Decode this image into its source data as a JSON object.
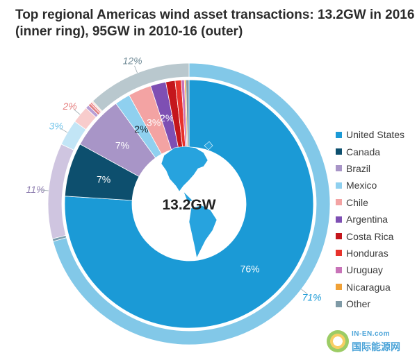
{
  "title_line1": "Top regional Americas wind asset transactions: 13.2GW in 2016",
  "title_line2": "(inner ring), 95GW in 2010-16 (outer)",
  "center_label": "13.2GW",
  "watermark": {
    "line1": "IN-EN.com",
    "line2": "国际能源网"
  },
  "chart_data": {
    "type": "donut",
    "title": "Top regional Americas wind asset transactions: 13.2GW in 2016 (inner ring), 95GW in 2010-16 (outer)",
    "categories": [
      "United States",
      "Canada",
      "Brazil",
      "Mexico",
      "Chile",
      "Argentina",
      "Costa Rica",
      "Honduras",
      "Uruguay",
      "Nicaragua",
      "Other"
    ],
    "colors": [
      "#1b9ad6",
      "#0d4f6e",
      "#a895c7",
      "#8fd0ef",
      "#f3a3a3",
      "#7e4fb3",
      "#c4161c",
      "#e8322b",
      "#c873b8",
      "#f0a137",
      "#7f9aa6"
    ],
    "series": [
      {
        "name": "2016 (inner ring)",
        "total_label": "13.2GW",
        "values": [
          76,
          7,
          7,
          2,
          3,
          2,
          1.2,
          0.8,
          0.4,
          0.2,
          0.4
        ],
        "labels": [
          "76%",
          "7%",
          "7%",
          "2%",
          "3%",
          "2%",
          "",
          "",
          "",
          "",
          ""
        ]
      },
      {
        "name": "2010-16 (outer ring)",
        "values": [
          71,
          0.3,
          11,
          3,
          2,
          0.4,
          0.3,
          0.2,
          0.1,
          0.1,
          12
        ],
        "labels": [
          "71%",
          "",
          "11%",
          "3%",
          "2%",
          "",
          "",
          "",
          "",
          "",
          "12%"
        ]
      }
    ],
    "legend_position": "right"
  }
}
